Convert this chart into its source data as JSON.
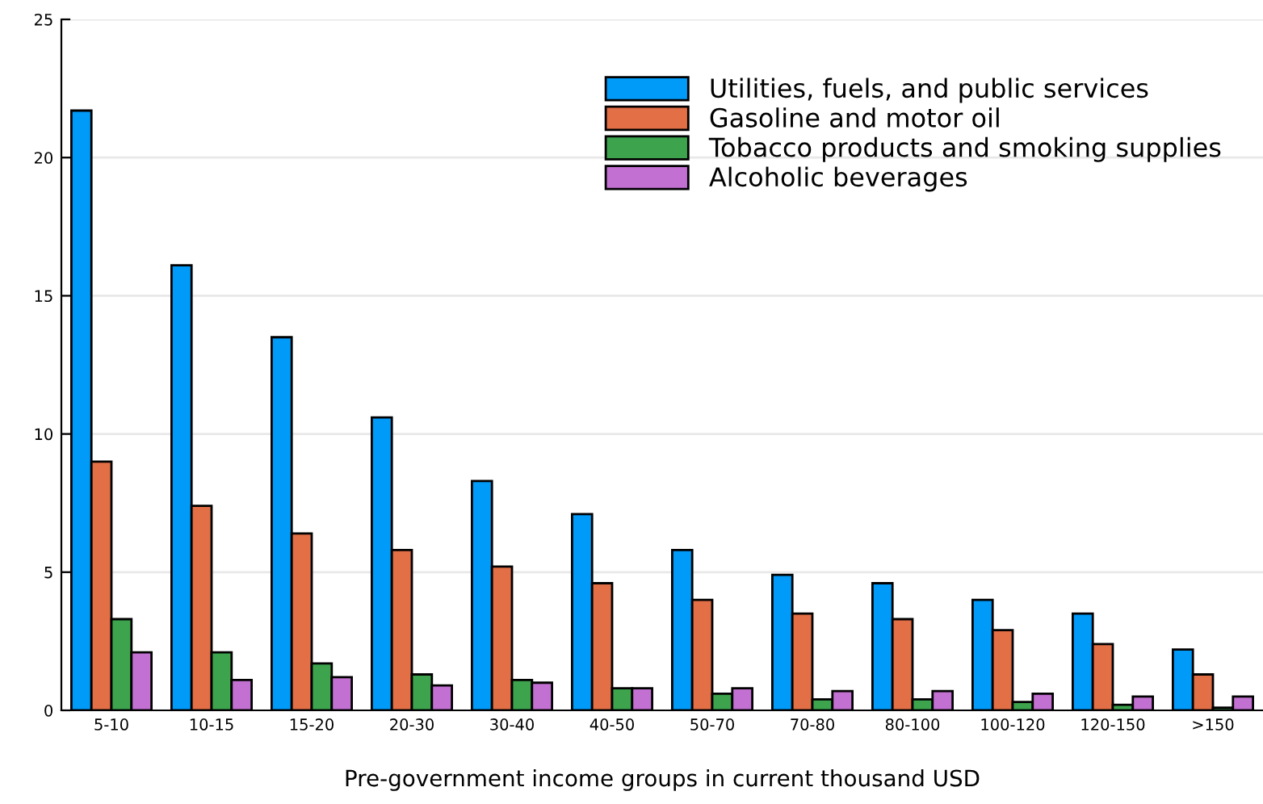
{
  "chart_data": {
    "type": "bar",
    "xlabel": "Pre-government income groups in current thousand USD",
    "categories": [
      "5-10",
      "10-15",
      "15-20",
      "20-30",
      "30-40",
      "40-50",
      "50-70",
      "70-80",
      "80-100",
      "100-120",
      "120-150",
      ">150"
    ],
    "series": [
      {
        "name": "Utilities, fuels, and public services",
        "color": "#009af9",
        "values": [
          21.7,
          16.1,
          13.5,
          10.6,
          8.3,
          7.1,
          5.8,
          4.9,
          4.6,
          4.0,
          3.5,
          2.2
        ]
      },
      {
        "name": "Gasoline and motor oil",
        "color": "#e26f46",
        "values": [
          9.0,
          7.4,
          6.4,
          5.8,
          5.2,
          4.6,
          4.0,
          3.5,
          3.3,
          2.9,
          2.4,
          1.3
        ]
      },
      {
        "name": "Tobacco products and smoking supplies",
        "color": "#3da44d",
        "values": [
          3.3,
          2.1,
          1.7,
          1.3,
          1.1,
          0.8,
          0.6,
          0.4,
          0.4,
          0.3,
          0.2,
          0.1
        ]
      },
      {
        "name": "Alcoholic beverages",
        "color": "#c271d2",
        "values": [
          2.1,
          1.1,
          1.2,
          0.9,
          1.0,
          0.8,
          0.8,
          0.7,
          0.7,
          0.6,
          0.5,
          0.5
        ]
      }
    ],
    "ylim": [
      0,
      25
    ],
    "yticks": [
      0,
      5,
      10,
      15,
      20,
      25
    ],
    "grid": "y",
    "legend": "top right"
  }
}
